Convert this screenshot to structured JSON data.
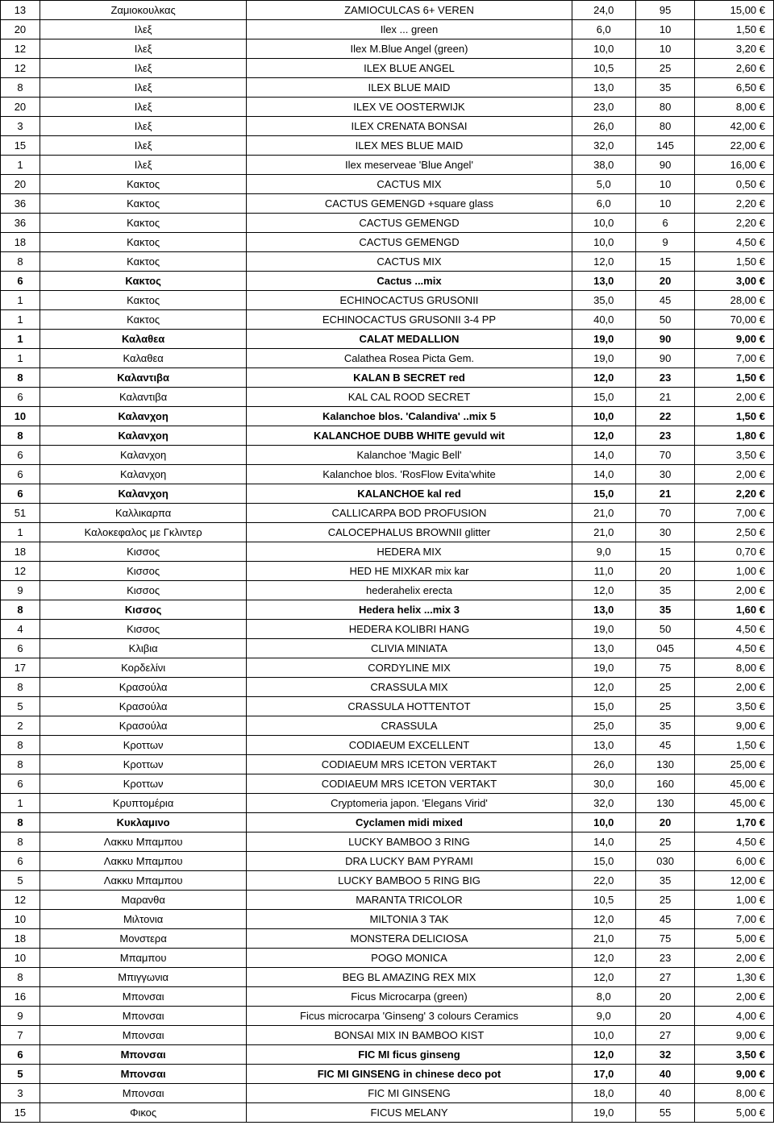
{
  "table": {
    "columns": [
      {
        "key": "qty",
        "class": "col-qty"
      },
      {
        "key": "name",
        "class": "col-name"
      },
      {
        "key": "desc",
        "class": "col-desc"
      },
      {
        "key": "num1",
        "class": "col-num1"
      },
      {
        "key": "num2",
        "class": "col-num2"
      },
      {
        "key": "price",
        "class": "col-price"
      }
    ],
    "rows": [
      {
        "qty": "13",
        "name": "Ζαμιοκουλκας",
        "desc": "ZAMIOCULCAS 6+ VEREN",
        "num1": "24,0",
        "num2": "95",
        "price": "15,00 €",
        "bold": false
      },
      {
        "qty": "20",
        "name": "Ιλεξ",
        "desc": "Ilex   ... green",
        "num1": "6,0",
        "num2": "10",
        "price": "1,50 €",
        "bold": false
      },
      {
        "qty": "12",
        "name": "Ιλεξ",
        "desc": "Ilex M.Blue Angel (green)",
        "num1": "10,0",
        "num2": "10",
        "price": "3,20 €",
        "bold": false
      },
      {
        "qty": "12",
        "name": "Ιλεξ",
        "desc": "ILEX BLUE ANGEL",
        "num1": "10,5",
        "num2": "25",
        "price": "2,60 €",
        "bold": false
      },
      {
        "qty": "8",
        "name": "Ιλεξ",
        "desc": "ILEX BLUE MAID",
        "num1": "13,0",
        "num2": "35",
        "price": "6,50 €",
        "bold": false
      },
      {
        "qty": "20",
        "name": "Ιλεξ",
        "desc": "ILEX VE OOSTERWIJK",
        "num1": "23,0",
        "num2": "80",
        "price": "8,00 €",
        "bold": false
      },
      {
        "qty": "3",
        "name": "Ιλεξ",
        "desc": "ILEX CRENATA BONSAI",
        "num1": "26,0",
        "num2": "80",
        "price": "42,00 €",
        "bold": false
      },
      {
        "qty": "15",
        "name": "Ιλεξ",
        "desc": "ILEX MES BLUE MAID",
        "num1": "32,0",
        "num2": "145",
        "price": "22,00 €",
        "bold": false
      },
      {
        "qty": "1",
        "name": "Ιλεξ",
        "desc": "Ilex meserveae 'Blue Angel'",
        "num1": "38,0",
        "num2": "90",
        "price": "16,00 €",
        "bold": false
      },
      {
        "qty": "20",
        "name": "Κακτος",
        "desc": "CACTUS MIX",
        "num1": "5,0",
        "num2": "10",
        "price": "0,50 €",
        "bold": false
      },
      {
        "qty": "36",
        "name": "Κακτος",
        "desc": "CACTUS GEMENGD +square glass",
        "num1": "6,0",
        "num2": "10",
        "price": "2,20 €",
        "bold": false
      },
      {
        "qty": "36",
        "name": "Κακτος",
        "desc": "CACTUS GEMENGD",
        "num1": "10,0",
        "num2": "6",
        "price": "2,20 €",
        "bold": false
      },
      {
        "qty": "18",
        "name": "Κακτος",
        "desc": "CACTUS GEMENGD",
        "num1": "10,0",
        "num2": "9",
        "price": "4,50 €",
        "bold": false
      },
      {
        "qty": "8",
        "name": "Κακτος",
        "desc": "CACTUS MIX",
        "num1": "12,0",
        "num2": "15",
        "price": "1,50 €",
        "bold": false
      },
      {
        "qty": "6",
        "name": "Κακτος",
        "desc": "Cactus  ...mix",
        "num1": "13,0",
        "num2": "20",
        "price": "3,00 €",
        "bold": true
      },
      {
        "qty": "1",
        "name": "Κακτος",
        "desc": "ECHINOCACTUS GRUSONII",
        "num1": "35,0",
        "num2": "45",
        "price": "28,00 €",
        "bold": false
      },
      {
        "qty": "1",
        "name": "Κακτος",
        "desc": "ECHINOCACTUS GRUSONII 3-4 PP",
        "num1": "40,0",
        "num2": "50",
        "price": "70,00 €",
        "bold": false
      },
      {
        "qty": "1",
        "name": "Καλαθεα",
        "desc": "CALAT MEDALLION",
        "num1": "19,0",
        "num2": "90",
        "price": "9,00 €",
        "bold": true
      },
      {
        "qty": "1",
        "name": "Καλαθεα",
        "desc": "Calathea Rosea Picta Gem.",
        "num1": "19,0",
        "num2": "90",
        "price": "7,00 €",
        "bold": false
      },
      {
        "qty": "8",
        "name": "Καλαντιβα",
        "desc": "KALAN B SECRET red",
        "num1": "12,0",
        "num2": "23",
        "price": "1,50 €",
        "bold": true
      },
      {
        "qty": "6",
        "name": "Καλαντιβα",
        "desc": "KAL CAL ROOD SECRET",
        "num1": "15,0",
        "num2": "21",
        "price": "2,00 €",
        "bold": false
      },
      {
        "qty": "10",
        "name": "Καλανχοη",
        "desc": "Kalanchoe blos. 'Calandiva' ..mix 5",
        "num1": "10,0",
        "num2": "22",
        "price": "1,50 €",
        "bold": true
      },
      {
        "qty": "8",
        "name": "Καλανχοη",
        "desc": "KALANCHOE DUBB WHITE gevuld wit",
        "num1": "12,0",
        "num2": "23",
        "price": "1,80 €",
        "bold": true
      },
      {
        "qty": "6",
        "name": "Καλανχοη",
        "desc": "Kalanchoe  'Magic Bell'",
        "num1": "14,0",
        "num2": "70",
        "price": "3,50 €",
        "bold": false
      },
      {
        "qty": "6",
        "name": "Καλανχοη",
        "desc": "Kalanchoe blos. 'RosFlow Evita'white",
        "num1": "14,0",
        "num2": "30",
        "price": "2,00 €",
        "bold": false
      },
      {
        "qty": "6",
        "name": "Καλανχοη",
        "desc": "KALANCHOE kal red",
        "num1": "15,0",
        "num2": "21",
        "price": "2,20 €",
        "bold": true
      },
      {
        "qty": "51",
        "name": "Καλλικαρπα",
        "desc": "CALLICARPA BOD PROFUSION",
        "num1": "21,0",
        "num2": "70",
        "price": "7,00 €",
        "bold": false
      },
      {
        "qty": "1",
        "name": "Καλοκεφαλος με Γκλιντερ",
        "desc": "CALOCEPHALUS BROWNII glitter",
        "num1": "21,0",
        "num2": "30",
        "price": "2,50 €",
        "bold": false
      },
      {
        "qty": "18",
        "name": "Κισσος",
        "desc": "HEDERA MIX",
        "num1": "9,0",
        "num2": "15",
        "price": "0,70 €",
        "bold": false
      },
      {
        "qty": "12",
        "name": "Κισσος",
        "desc": "HED HE MIXKAR mix kar",
        "num1": "11,0",
        "num2": "20",
        "price": "1,00 €",
        "bold": false
      },
      {
        "qty": "9",
        "name": "Κισσος",
        "desc": "hederahelix erecta",
        "num1": "12,0",
        "num2": "35",
        "price": "2,00 €",
        "bold": false
      },
      {
        "qty": "8",
        "name": "Κισσος",
        "desc": "Hedera helix   ...mix 3",
        "num1": "13,0",
        "num2": "35",
        "price": "1,60 €",
        "bold": true
      },
      {
        "qty": "4",
        "name": "Κισσος",
        "desc": "HEDERA KOLIBRI HANG",
        "num1": "19,0",
        "num2": "50",
        "price": "4,50 €",
        "bold": false
      },
      {
        "qty": "6",
        "name": "Κλιβια",
        "desc": "CLIVIA MINIATA",
        "num1": "13,0",
        "num2": "045",
        "price": "4,50 €",
        "bold": false
      },
      {
        "qty": "17",
        "name": "Κορδελίνι",
        "desc": "CORDYLINE MIX",
        "num1": "19,0",
        "num2": "75",
        "price": "8,00 €",
        "bold": false
      },
      {
        "qty": "8",
        "name": "Κρασούλα",
        "desc": "CRASSULA MIX",
        "num1": "12,0",
        "num2": "25",
        "price": "2,00 €",
        "bold": false
      },
      {
        "qty": "5",
        "name": "Κρασούλα",
        "desc": "CRASSULA HOTTENTOT",
        "num1": "15,0",
        "num2": "25",
        "price": "3,50 €",
        "bold": false
      },
      {
        "qty": "2",
        "name": "Κρασούλα",
        "desc": "CRASSULA",
        "num1": "25,0",
        "num2": "35",
        "price": "9,00 €",
        "bold": false
      },
      {
        "qty": "8",
        "name": "Κροττων",
        "desc": "CODIAEUM EXCELLENT",
        "num1": "13,0",
        "num2": "45",
        "price": "1,50 €",
        "bold": false
      },
      {
        "qty": "8",
        "name": "Κροττων",
        "desc": "CODIAEUM MRS ICETON VERTAKT",
        "num1": "26,0",
        "num2": "130",
        "price": "25,00 €",
        "bold": false
      },
      {
        "qty": "6",
        "name": "Κροττων",
        "desc": "CODIAEUM MRS ICETON VERTAKT",
        "num1": "30,0",
        "num2": "160",
        "price": "45,00 €",
        "bold": false
      },
      {
        "qty": "1",
        "name": "Κρυπτομέρια",
        "desc": "Cryptomeria japon. 'Elegans Virid'",
        "num1": "32,0",
        "num2": "130",
        "price": "45,00 €",
        "bold": false
      },
      {
        "qty": "8",
        "name": "Κυκλαμινο",
        "desc": "Cyclamen midi mixed",
        "num1": "10,0",
        "num2": "20",
        "price": "1,70 €",
        "bold": true
      },
      {
        "qty": "8",
        "name": "Λακκυ Μπαμπου",
        "desc": "LUCKY BAMBOO 3 RING",
        "num1": "14,0",
        "num2": "25",
        "price": "4,50 €",
        "bold": false
      },
      {
        "qty": "6",
        "name": "Λακκυ Μπαμπου",
        "desc": "DRA LUCKY BAM PYRAMI",
        "num1": "15,0",
        "num2": "030",
        "price": "6,00 €",
        "bold": false
      },
      {
        "qty": "5",
        "name": "Λακκυ Μπαμπου",
        "desc": "LUCKY BAMBOO 5 RING BIG",
        "num1": "22,0",
        "num2": "35",
        "price": "12,00 €",
        "bold": false
      },
      {
        "qty": "12",
        "name": "Μαρανθα",
        "desc": "MARANTA TRICOLOR",
        "num1": "10,5",
        "num2": "25",
        "price": "1,00 €",
        "bold": false
      },
      {
        "qty": "10",
        "name": "Μιλτονια",
        "desc": "MILTONIA 3 TAK",
        "num1": "12,0",
        "num2": "45",
        "price": "7,00 €",
        "bold": false
      },
      {
        "qty": "18",
        "name": "Μονστερα",
        "desc": "MONSTERA DELICIOSA",
        "num1": "21,0",
        "num2": "75",
        "price": "5,00 €",
        "bold": false
      },
      {
        "qty": "10",
        "name": "Μπαμπου",
        "desc": "POGO MONICA",
        "num1": "12,0",
        "num2": "23",
        "price": "2,00 €",
        "bold": false
      },
      {
        "qty": "8",
        "name": "Μπιγγωνια",
        "desc": "BEG BL AMAZING REX MIX",
        "num1": "12,0",
        "num2": "27",
        "price": "1,30 €",
        "bold": false
      },
      {
        "qty": "16",
        "name": "Μπονσαι",
        "desc": "Ficus Microcarpa (green)",
        "num1": "8,0",
        "num2": "20",
        "price": "2,00 €",
        "bold": false
      },
      {
        "qty": "9",
        "name": "Μπονσαι",
        "desc": "Ficus microcarpa 'Ginseng' 3 colours Ceramics",
        "num1": "9,0",
        "num2": "20",
        "price": "4,00 €",
        "bold": false
      },
      {
        "qty": "7",
        "name": "Μπονσαι",
        "desc": "BONSAI MIX IN BAMBOO KIST",
        "num1": "10,0",
        "num2": "27",
        "price": "9,00 €",
        "bold": false
      },
      {
        "qty": "6",
        "name": "Μπονσαι",
        "desc": "FIC MI ficus ginseng",
        "num1": "12,0",
        "num2": "32",
        "price": "3,50 €",
        "bold": true
      },
      {
        "qty": "5",
        "name": "Μπονσαι",
        "desc": "FIC MI GINSENG in chinese deco pot",
        "num1": "17,0",
        "num2": "40",
        "price": "9,00 €",
        "bold": true
      },
      {
        "qty": "3",
        "name": "Μπονσαι",
        "desc": "FIC MI GINSENG",
        "num1": "18,0",
        "num2": "40",
        "price": "8,00 €",
        "bold": false
      },
      {
        "qty": "15",
        "name": "Φικος",
        "desc": "FICUS MELANY",
        "num1": "19,0",
        "num2": "55",
        "price": "5,00 €",
        "bold": false
      }
    ]
  }
}
